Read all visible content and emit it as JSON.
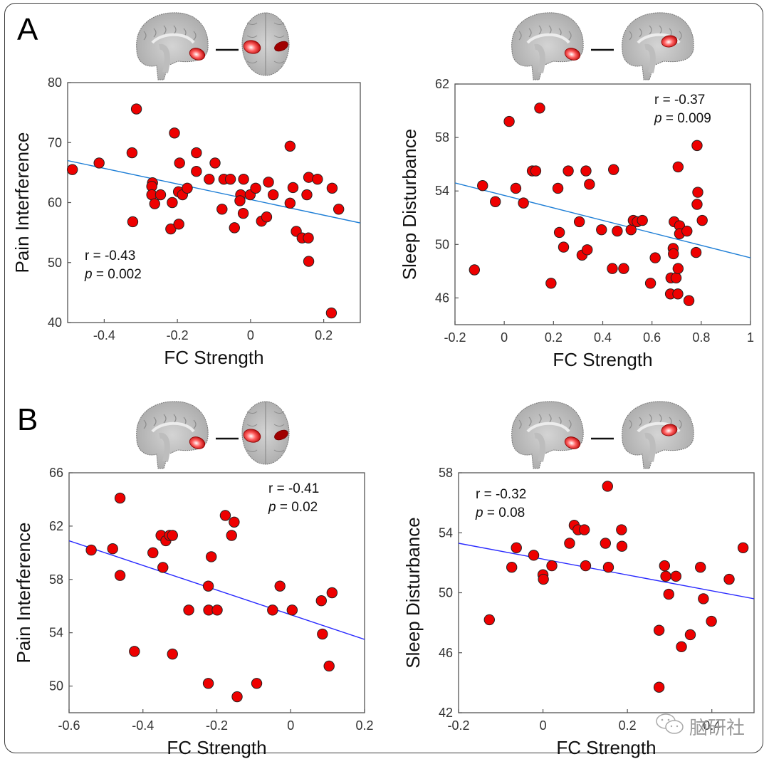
{
  "figure": {
    "panel_labels": [
      "A",
      "B"
    ],
    "watermark": {
      "icon": "wechat-icon",
      "text": "脑研社"
    },
    "colors": {
      "marker_fill": "#ee0000",
      "marker_edge": "#222222",
      "fit_line_A": "#1f7fd6",
      "fit_line_B": "#2a2aff",
      "axis": "#555555"
    }
  },
  "chart_data": [
    {
      "id": "A-left",
      "panel": "A",
      "type": "scatter",
      "title": "",
      "brain_pair": [
        "sagittal",
        "axial"
      ],
      "xlabel": "FC Strength",
      "ylabel": "Pain Interference",
      "xlim": [
        -0.5,
        0.3
      ],
      "ylim": [
        40,
        80
      ],
      "xticks": [
        -0.4,
        -0.2,
        0,
        0.2
      ],
      "xtick_labels": [
        "-0.4",
        "-0.2",
        "0",
        "0.2"
      ],
      "yticks": [
        40,
        50,
        60,
        70,
        80
      ],
      "ytick_labels": [
        "40",
        "50",
        "60",
        "70",
        "80"
      ],
      "stats": {
        "r": "r = -0.43",
        "p_label": "p",
        "p_value": " = 0.002",
        "position": "bottom-left"
      },
      "fit_line": {
        "x": [
          -0.5,
          0.3
        ],
        "y": [
          67.0,
          56.6
        ]
      },
      "points": [
        [
          -0.487,
          65.5
        ],
        [
          -0.414,
          66.6
        ],
        [
          -0.312,
          75.6
        ],
        [
          -0.324,
          68.3
        ],
        [
          -0.322,
          56.8
        ],
        [
          -0.208,
          71.6
        ],
        [
          -0.194,
          66.6
        ],
        [
          -0.148,
          68.3
        ],
        [
          -0.148,
          65.2
        ],
        [
          -0.097,
          66.6
        ],
        [
          -0.113,
          63.9
        ],
        [
          -0.073,
          63.9
        ],
        [
          -0.055,
          63.9
        ],
        [
          -0.019,
          63.9
        ],
        [
          -0.268,
          63.3
        ],
        [
          -0.27,
          62.7
        ],
        [
          -0.27,
          61.3
        ],
        [
          -0.246,
          61.3
        ],
        [
          -0.262,
          59.8
        ],
        [
          -0.214,
          60.0
        ],
        [
          -0.197,
          61.8
        ],
        [
          -0.186,
          61.3
        ],
        [
          -0.173,
          62.4
        ],
        [
          -0.218,
          55.6
        ],
        [
          -0.196,
          56.4
        ],
        [
          -0.078,
          58.9
        ],
        [
          -0.044,
          55.8
        ],
        [
          -0.027,
          61.3
        ],
        [
          -0.029,
          60.3
        ],
        [
          -0.02,
          58.2
        ],
        [
          -0.001,
          61.3
        ],
        [
          0.014,
          62.4
        ],
        [
          0.03,
          56.9
        ],
        [
          0.044,
          57.6
        ],
        [
          0.049,
          63.4
        ],
        [
          0.062,
          61.3
        ],
        [
          0.108,
          69.4
        ],
        [
          0.108,
          59.9
        ],
        [
          0.116,
          62.5
        ],
        [
          0.125,
          55.2
        ],
        [
          0.141,
          54.1
        ],
        [
          0.158,
          54.1
        ],
        [
          0.159,
          50.2
        ],
        [
          0.154,
          61.3
        ],
        [
          0.159,
          64.2
        ],
        [
          0.183,
          63.9
        ],
        [
          0.223,
          62.4
        ],
        [
          0.241,
          58.9
        ],
        [
          0.221,
          41.6
        ]
      ]
    },
    {
      "id": "A-right",
      "panel": "A",
      "type": "scatter",
      "title": "",
      "brain_pair": [
        "sagittal",
        "sagittal"
      ],
      "xlabel": "FC Strength",
      "ylabel": "Sleep Disturbance",
      "xlim": [
        -0.2,
        1.0
      ],
      "ylim": [
        44,
        62
      ],
      "xticks": [
        -0.2,
        0,
        0.2,
        0.4,
        0.6,
        0.8,
        1.0
      ],
      "xtick_labels": [
        "-0.2",
        "0",
        "0.2",
        "0.4",
        "0.6",
        "0.8",
        "1"
      ],
      "yticks": [
        46,
        50,
        54,
        58,
        62
      ],
      "ytick_labels": [
        "46",
        "50",
        "54",
        "58",
        "62"
      ],
      "stats": {
        "r": "r = -0.37",
        "p_label": "p",
        "p_value": " = 0.009",
        "position": "top-right"
      },
      "fit_line": {
        "x": [
          -0.2,
          1.0
        ],
        "y": [
          54.6,
          49.0
        ]
      },
      "points": [
        [
          -0.121,
          48.1
        ],
        [
          -0.088,
          54.4
        ],
        [
          -0.036,
          53.2
        ],
        [
          0.02,
          59.2
        ],
        [
          0.047,
          54.2
        ],
        [
          0.078,
          53.1
        ],
        [
          0.144,
          60.2
        ],
        [
          0.114,
          55.5
        ],
        [
          0.128,
          55.5
        ],
        [
          0.19,
          47.1
        ],
        [
          0.218,
          54.2
        ],
        [
          0.224,
          50.9
        ],
        [
          0.241,
          49.8
        ],
        [
          0.26,
          55.5
        ],
        [
          0.305,
          51.7
        ],
        [
          0.316,
          49.2
        ],
        [
          0.332,
          55.5
        ],
        [
          0.337,
          49.6
        ],
        [
          0.346,
          54.5
        ],
        [
          0.395,
          51.1
        ],
        [
          0.444,
          55.6
        ],
        [
          0.439,
          48.2
        ],
        [
          0.459,
          51.0
        ],
        [
          0.485,
          48.2
        ],
        [
          0.515,
          51.1
        ],
        [
          0.524,
          51.8
        ],
        [
          0.54,
          51.7
        ],
        [
          0.561,
          51.8
        ],
        [
          0.594,
          47.1
        ],
        [
          0.613,
          49.0
        ],
        [
          0.677,
          47.5
        ],
        [
          0.675,
          46.3
        ],
        [
          0.686,
          49.7
        ],
        [
          0.687,
          49.3
        ],
        [
          0.69,
          51.7
        ],
        [
          0.698,
          47.5
        ],
        [
          0.705,
          46.3
        ],
        [
          0.706,
          55.8
        ],
        [
          0.706,
          48.2
        ],
        [
          0.712,
          51.4
        ],
        [
          0.712,
          50.8
        ],
        [
          0.742,
          51.0
        ],
        [
          0.75,
          45.8
        ],
        [
          0.779,
          49.4
        ],
        [
          0.783,
          53.0
        ],
        [
          0.783,
          57.4
        ],
        [
          0.786,
          53.9
        ],
        [
          0.804,
          51.8
        ]
      ]
    },
    {
      "id": "B-left",
      "panel": "B",
      "type": "scatter",
      "title": "",
      "brain_pair": [
        "sagittal",
        "axial"
      ],
      "xlabel": "FC Strength",
      "ylabel": "Pain Interference",
      "xlim": [
        -0.6,
        0.2
      ],
      "ylim": [
        48,
        66
      ],
      "xticks": [
        -0.6,
        -0.4,
        -0.2,
        0,
        0.2
      ],
      "xtick_labels": [
        "-0.6",
        "-0.4",
        "-0.2",
        "0",
        "0.2"
      ],
      "yticks": [
        50,
        54,
        58,
        62,
        66
      ],
      "ytick_labels": [
        "50",
        "54",
        "58",
        "62",
        "66"
      ],
      "stats": {
        "r": "r = -0.41",
        "p_label": "p",
        "p_value": " = 0.02",
        "position": "top-right"
      },
      "fit_line": {
        "x": [
          -0.6,
          0.2
        ],
        "y": [
          60.9,
          53.5
        ]
      },
      "points": [
        [
          -0.54,
          60.2
        ],
        [
          -0.482,
          60.3
        ],
        [
          -0.462,
          64.1
        ],
        [
          -0.462,
          58.3
        ],
        [
          -0.423,
          52.6
        ],
        [
          -0.373,
          60.0
        ],
        [
          -0.351,
          61.3
        ],
        [
          -0.338,
          60.9
        ],
        [
          -0.328,
          61.3
        ],
        [
          -0.32,
          61.3
        ],
        [
          -0.346,
          58.9
        ],
        [
          -0.32,
          52.4
        ],
        [
          -0.276,
          55.7
        ],
        [
          -0.222,
          55.7
        ],
        [
          -0.223,
          57.5
        ],
        [
          -0.223,
          50.2
        ],
        [
          -0.215,
          59.7
        ],
        [
          -0.199,
          55.7
        ],
        [
          -0.177,
          62.8
        ],
        [
          -0.153,
          62.3
        ],
        [
          -0.16,
          61.3
        ],
        [
          -0.145,
          49.2
        ],
        [
          -0.092,
          50.2
        ],
        [
          -0.049,
          55.7
        ],
        [
          -0.029,
          57.5
        ],
        [
          0.004,
          55.7
        ],
        [
          0.083,
          56.4
        ],
        [
          0.086,
          53.9
        ],
        [
          0.112,
          57.0
        ],
        [
          0.104,
          51.5
        ]
      ]
    },
    {
      "id": "B-right",
      "panel": "B",
      "type": "scatter",
      "title": "",
      "brain_pair": [
        "sagittal",
        "sagittal"
      ],
      "xlabel": "FC Strength",
      "ylabel": "Sleep Disturbance",
      "xlim": [
        -0.2,
        0.5
      ],
      "ylim": [
        42,
        58
      ],
      "xticks": [
        -0.2,
        0,
        0.2,
        0.4
      ],
      "xtick_labels": [
        "-0.2",
        "0",
        "0.2",
        "0.4"
      ],
      "yticks": [
        42,
        46,
        50,
        54,
        58
      ],
      "ytick_labels": [
        "42",
        "46",
        "50",
        "54",
        "58"
      ],
      "stats": {
        "r": "r = -0.32",
        "p_label": "p",
        "p_value": " = 0.08",
        "position": "top-left"
      },
      "fit_line": {
        "x": [
          -0.2,
          0.5
        ],
        "y": [
          53.3,
          49.6
        ]
      },
      "points": [
        [
          -0.127,
          48.2
        ],
        [
          -0.074,
          51.7
        ],
        [
          -0.063,
          53.0
        ],
        [
          -0.022,
          52.5
        ],
        [
          0.0,
          51.2
        ],
        [
          0.001,
          50.9
        ],
        [
          0.021,
          51.8
        ],
        [
          0.063,
          53.3
        ],
        [
          0.074,
          54.5
        ],
        [
          0.083,
          54.2
        ],
        [
          0.098,
          54.2
        ],
        [
          0.101,
          51.8
        ],
        [
          0.148,
          53.3
        ],
        [
          0.153,
          57.1
        ],
        [
          0.155,
          51.7
        ],
        [
          0.186,
          54.2
        ],
        [
          0.187,
          53.1
        ],
        [
          0.275,
          47.5
        ],
        [
          0.275,
          43.7
        ],
        [
          0.288,
          51.8
        ],
        [
          0.291,
          51.1
        ],
        [
          0.298,
          49.9
        ],
        [
          0.315,
          51.1
        ],
        [
          0.328,
          46.4
        ],
        [
          0.349,
          47.2
        ],
        [
          0.373,
          51.7
        ],
        [
          0.38,
          49.6
        ],
        [
          0.399,
          48.1
        ],
        [
          0.441,
          50.9
        ],
        [
          0.474,
          53.0
        ]
      ]
    }
  ]
}
